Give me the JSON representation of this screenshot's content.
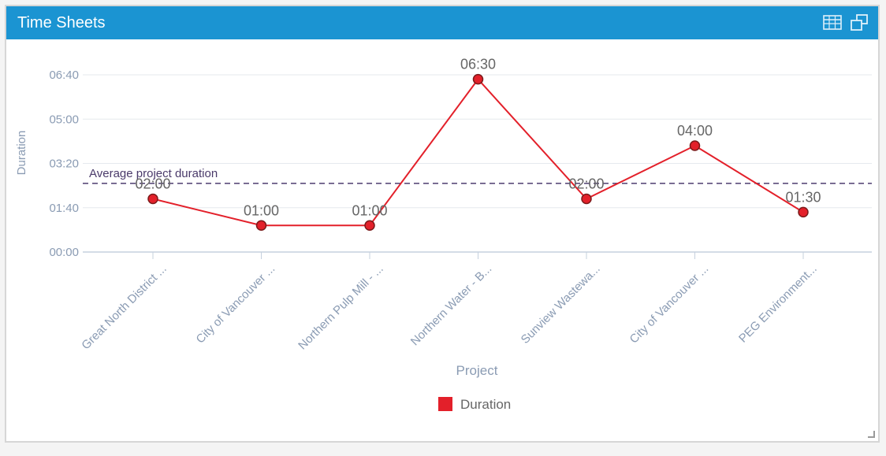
{
  "panel": {
    "title": "Time Sheets",
    "icons": [
      "table-view-icon",
      "popout-window-icon"
    ]
  },
  "colors": {
    "header": "#1b94d2",
    "series": "#e3202a",
    "average_line": "#5b4c7a",
    "axis_text": "#8a9bb3",
    "label_text": "#666666"
  },
  "chart_data": {
    "type": "line",
    "title": "",
    "xlabel": "Project",
    "ylabel": "Duration",
    "y_unit": "minutes",
    "ylim": [
      0,
      440
    ],
    "y_ticks": [
      0,
      100,
      200,
      300,
      400
    ],
    "y_tick_labels": [
      "00:00",
      "01:40",
      "03:20",
      "05:00",
      "06:40"
    ],
    "categories": [
      "Great North District ...",
      "City of Vancouver ...",
      "Northern Pulp Mill - ...",
      "Northern Water - B...",
      "Sunview Wastewa...",
      "City of Vancouver ...",
      "PEG Environment..."
    ],
    "series": [
      {
        "name": "Duration",
        "values": [
          120,
          60,
          60,
          390,
          120,
          240,
          90
        ],
        "data_labels": [
          "02:00",
          "01:00",
          "01:00",
          "06:30",
          "02:00",
          "04:00",
          "01:30"
        ]
      }
    ],
    "average_line": {
      "label": "Average project duration",
      "value": 155
    },
    "legend": {
      "placement": "bottom-center",
      "entries": [
        "Duration"
      ]
    },
    "grid": true
  }
}
